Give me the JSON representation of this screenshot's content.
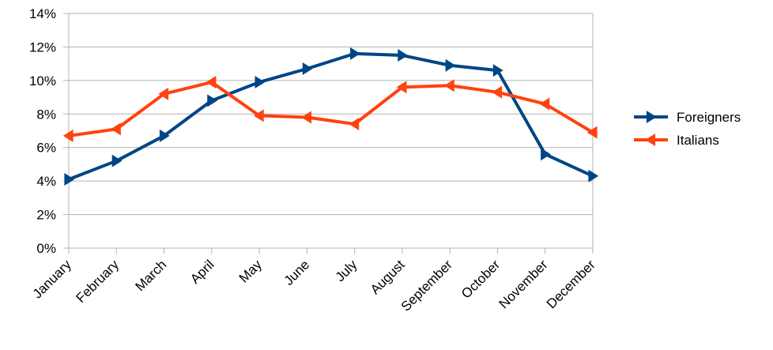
{
  "chart_data": {
    "type": "line",
    "title": "",
    "xlabel": "",
    "ylabel": "",
    "categories": [
      "January",
      "February",
      "March",
      "April",
      "May",
      "June",
      "July",
      "August",
      "September",
      "October",
      "November",
      "December"
    ],
    "ylim": [
      0,
      14
    ],
    "yticks": [
      0,
      2,
      4,
      6,
      8,
      10,
      12,
      14
    ],
    "ytick_labels": [
      "0%",
      "2%",
      "4%",
      "6%",
      "8%",
      "10%",
      "12%",
      "14%"
    ],
    "grid": true,
    "legend_position": "right",
    "series": [
      {
        "name": "Foreigners",
        "color": "#004586",
        "marker": "triangle-right",
        "values": [
          4.1,
          5.2,
          6.7,
          8.8,
          9.9,
          10.7,
          11.6,
          11.5,
          10.9,
          10.6,
          5.6,
          4.3
        ]
      },
      {
        "name": "Italians",
        "color": "#ff420e",
        "marker": "triangle-left",
        "values": [
          6.7,
          7.1,
          9.2,
          9.9,
          7.9,
          7.8,
          7.4,
          9.6,
          9.7,
          9.3,
          8.6,
          6.9
        ]
      }
    ]
  }
}
